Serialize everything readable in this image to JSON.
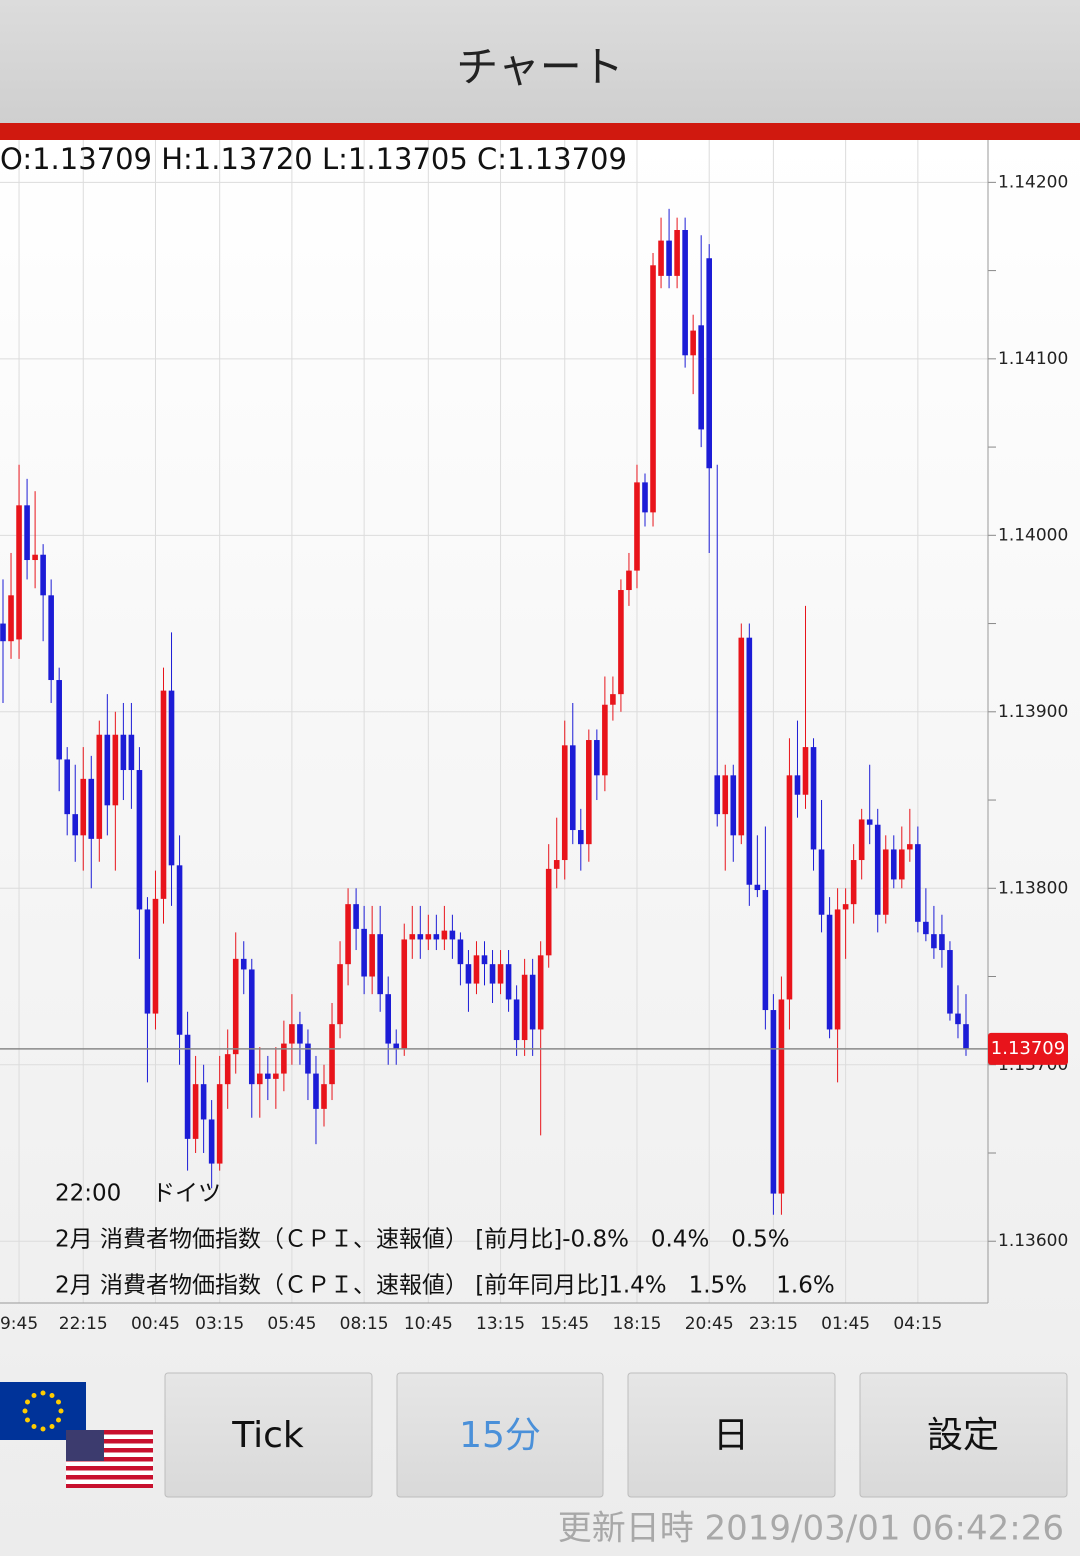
{
  "header": {
    "title": "チャート"
  },
  "chart_data": {
    "type": "candlestick",
    "ohlc_label": "O:1.13709 H:1.13720 L:1.13705 C:1.13709",
    "up_color": "#e8141b",
    "down_color": "#1c1cd6",
    "grid": true,
    "ylim": [
      1.13565,
      1.14224
    ],
    "yticks": [
      {
        "value": 1.142,
        "label": "1.14200"
      },
      {
        "value": 1.141,
        "label": "1.14100"
      },
      {
        "value": 1.14,
        "label": "1.14000"
      },
      {
        "value": 1.139,
        "label": "1.13900"
      },
      {
        "value": 1.138,
        "label": "1.13800"
      },
      {
        "value": 1.137,
        "label": "1.13700"
      },
      {
        "value": 1.136,
        "label": "1.13600"
      }
    ],
    "minor_yticks": [
      1.1415,
      1.1405,
      1.1395,
      1.1385,
      1.1375,
      1.1365
    ],
    "last_price": {
      "value": 1.13709,
      "label": "1.13709"
    },
    "categories": [
      null,
      null,
      "9:45",
      null,
      null,
      null,
      null,
      null,
      null,
      null,
      "22:15",
      null,
      null,
      null,
      null,
      null,
      null,
      null,
      null,
      "00:45",
      null,
      null,
      null,
      null,
      null,
      null,
      null,
      "03:15",
      null,
      null,
      null,
      null,
      null,
      null,
      null,
      null,
      "05:45",
      null,
      null,
      null,
      null,
      null,
      null,
      null,
      null,
      "08:15",
      null,
      null,
      null,
      null,
      null,
      null,
      null,
      "10:45",
      null,
      null,
      null,
      null,
      null,
      null,
      null,
      null,
      "13:15",
      null,
      null,
      null,
      null,
      null,
      null,
      null,
      "15:45",
      null,
      null,
      null,
      null,
      null,
      null,
      null,
      null,
      "18:15",
      null,
      null,
      null,
      null,
      null,
      null,
      null,
      null,
      "20:45",
      null,
      null,
      null,
      null,
      null,
      null,
      null,
      "23:15",
      null,
      null,
      null,
      null,
      null,
      null,
      null,
      null,
      "01:45",
      null,
      null,
      null,
      null,
      null,
      null,
      null,
      null,
      "04:15",
      null,
      null,
      null,
      null,
      null,
      null
    ],
    "ohlc": [
      [
        1.1395,
        1.13975,
        1.13905,
        1.1394
      ],
      [
        1.1394,
        1.1399,
        1.1393,
        1.13966
      ],
      [
        1.13941,
        1.1404,
        1.1393,
        1.14017
      ],
      [
        1.14017,
        1.14032,
        1.13975,
        1.13986
      ],
      [
        1.13986,
        1.14025,
        1.1397,
        1.13989
      ],
      [
        1.13989,
        1.13995,
        1.1394,
        1.13966
      ],
      [
        1.13966,
        1.13975,
        1.13905,
        1.13918
      ],
      [
        1.13918,
        1.13925,
        1.13855,
        1.13873
      ],
      [
        1.13873,
        1.1388,
        1.1383,
        1.13842
      ],
      [
        1.13842,
        1.1387,
        1.13815,
        1.1383
      ],
      [
        1.1383,
        1.1388,
        1.1381,
        1.13862
      ],
      [
        1.13862,
        1.13875,
        1.138,
        1.13828
      ],
      [
        1.13828,
        1.13895,
        1.13815,
        1.13887
      ],
      [
        1.13887,
        1.1391,
        1.1383,
        1.13847
      ],
      [
        1.13847,
        1.139,
        1.1381,
        1.13887
      ],
      [
        1.13887,
        1.13905,
        1.1385,
        1.13867
      ],
      [
        1.13887,
        1.13905,
        1.13845,
        1.13867
      ],
      [
        1.13867,
        1.1388,
        1.1376,
        1.13788
      ],
      [
        1.13788,
        1.13795,
        1.1369,
        1.13729
      ],
      [
        1.13729,
        1.1381,
        1.1372,
        1.13794
      ],
      [
        1.13794,
        1.13925,
        1.1378,
        1.13912
      ],
      [
        1.13912,
        1.13945,
        1.1379,
        1.13813
      ],
      [
        1.13813,
        1.1383,
        1.137,
        1.13717
      ],
      [
        1.13717,
        1.1373,
        1.1364,
        1.13658
      ],
      [
        1.13658,
        1.13705,
        1.1365,
        1.13689
      ],
      [
        1.13689,
        1.137,
        1.1365,
        1.13669
      ],
      [
        1.13669,
        1.1368,
        1.1363,
        1.13644
      ],
      [
        1.13644,
        1.13705,
        1.1364,
        1.13689
      ],
      [
        1.13689,
        1.1372,
        1.13675,
        1.13706
      ],
      [
        1.13706,
        1.13775,
        1.13695,
        1.1376
      ],
      [
        1.1376,
        1.1377,
        1.1374,
        1.13754
      ],
      [
        1.13754,
        1.1376,
        1.1367,
        1.13689
      ],
      [
        1.13689,
        1.1371,
        1.1367,
        1.13695
      ],
      [
        1.13695,
        1.13705,
        1.1368,
        1.13692
      ],
      [
        1.13692,
        1.1371,
        1.13675,
        1.13695
      ],
      [
        1.13695,
        1.13725,
        1.13685,
        1.13712
      ],
      [
        1.13712,
        1.1374,
        1.137,
        1.13723
      ],
      [
        1.13723,
        1.1373,
        1.137,
        1.13712
      ],
      [
        1.13712,
        1.1372,
        1.1368,
        1.13695
      ],
      [
        1.13695,
        1.13705,
        1.13655,
        1.13675
      ],
      [
        1.13675,
        1.137,
        1.13665,
        1.13689
      ],
      [
        1.13689,
        1.13735,
        1.1368,
        1.13723
      ],
      [
        1.13723,
        1.1377,
        1.13715,
        1.13757
      ],
      [
        1.13757,
        1.138,
        1.13745,
        1.13791
      ],
      [
        1.13791,
        1.138,
        1.13765,
        1.13777
      ],
      [
        1.13777,
        1.1379,
        1.1374,
        1.1375
      ],
      [
        1.1375,
        1.1379,
        1.1374,
        1.13774
      ],
      [
        1.13774,
        1.1379,
        1.1373,
        1.1374
      ],
      [
        1.1374,
        1.1375,
        1.137,
        1.13712
      ],
      [
        1.13712,
        1.1372,
        1.137,
        1.13709
      ],
      [
        1.13709,
        1.1378,
        1.13705,
        1.13771
      ],
      [
        1.13771,
        1.1379,
        1.1376,
        1.13774
      ],
      [
        1.13774,
        1.1379,
        1.1376,
        1.13771
      ],
      [
        1.13771,
        1.13785,
        1.13765,
        1.13774
      ],
      [
        1.13774,
        1.13785,
        1.13765,
        1.13771
      ],
      [
        1.13771,
        1.1379,
        1.13765,
        1.13776
      ],
      [
        1.13776,
        1.13785,
        1.1376,
        1.13771
      ],
      [
        1.13771,
        1.13775,
        1.13745,
        1.13757
      ],
      [
        1.13757,
        1.13765,
        1.1373,
        1.13746
      ],
      [
        1.13746,
        1.1377,
        1.1374,
        1.13762
      ],
      [
        1.13762,
        1.1377,
        1.13745,
        1.13757
      ],
      [
        1.13757,
        1.13765,
        1.13735,
        1.13746
      ],
      [
        1.13746,
        1.13765,
        1.1374,
        1.13757
      ],
      [
        1.13757,
        1.13765,
        1.1373,
        1.13737
      ],
      [
        1.13737,
        1.13745,
        1.13705,
        1.13714
      ],
      [
        1.13714,
        1.1376,
        1.13705,
        1.13751
      ],
      [
        1.13751,
        1.1376,
        1.13705,
        1.1372
      ],
      [
        1.1372,
        1.1377,
        1.1366,
        1.13762
      ],
      [
        1.13762,
        1.13825,
        1.13755,
        1.13811
      ],
      [
        1.13811,
        1.1384,
        1.138,
        1.13816
      ],
      [
        1.13816,
        1.13895,
        1.13805,
        1.13881
      ],
      [
        1.13881,
        1.13905,
        1.13825,
        1.13833
      ],
      [
        1.13833,
        1.13845,
        1.1381,
        1.13825
      ],
      [
        1.13825,
        1.1389,
        1.13815,
        1.13884
      ],
      [
        1.13884,
        1.1389,
        1.1385,
        1.13864
      ],
      [
        1.13864,
        1.1392,
        1.13855,
        1.13904
      ],
      [
        1.13904,
        1.1392,
        1.13895,
        1.1391
      ],
      [
        1.1391,
        1.13975,
        1.139,
        1.13969
      ],
      [
        1.13969,
        1.1399,
        1.1396,
        1.1398
      ],
      [
        1.1398,
        1.1404,
        1.1397,
        1.1403
      ],
      [
        1.1403,
        1.14035,
        1.14005,
        1.14013
      ],
      [
        1.14013,
        1.1416,
        1.14005,
        1.14153
      ],
      [
        1.14147,
        1.1418,
        1.1414,
        1.14167
      ],
      [
        1.14167,
        1.14185,
        1.1414,
        1.14147
      ],
      [
        1.14147,
        1.1418,
        1.1414,
        1.14173
      ],
      [
        1.14173,
        1.1418,
        1.14095,
        1.14102
      ],
      [
        1.14102,
        1.14125,
        1.1408,
        1.14116
      ],
      [
        1.14119,
        1.1417,
        1.1405,
        1.1406
      ],
      [
        1.14157,
        1.14165,
        1.1399,
        1.14038
      ],
      [
        1.13864,
        1.1404,
        1.13835,
        1.13842
      ],
      [
        1.13842,
        1.1387,
        1.1381,
        1.13864
      ],
      [
        1.13864,
        1.1387,
        1.13815,
        1.1383
      ],
      [
        1.1383,
        1.1395,
        1.13825,
        1.13942
      ],
      [
        1.13942,
        1.1395,
        1.1379,
        1.13802
      ],
      [
        1.13802,
        1.1383,
        1.13795,
        1.13799
      ],
      [
        1.13799,
        1.13835,
        1.1372,
        1.13731
      ],
      [
        1.13731,
        1.1374,
        1.13615,
        1.13627
      ],
      [
        1.13627,
        1.1375,
        1.13615,
        1.13737
      ],
      [
        1.13737,
        1.13885,
        1.1372,
        1.13864
      ],
      [
        1.13864,
        1.13895,
        1.1384,
        1.13853
      ],
      [
        1.13853,
        1.1396,
        1.13845,
        1.1388
      ],
      [
        1.1388,
        1.13885,
        1.1381,
        1.13822
      ],
      [
        1.13822,
        1.1385,
        1.13775,
        1.13785
      ],
      [
        1.13785,
        1.13795,
        1.13715,
        1.1372
      ],
      [
        1.1372,
        1.138,
        1.1369,
        1.13788
      ],
      [
        1.13788,
        1.138,
        1.1376,
        1.13791
      ],
      [
        1.13791,
        1.13825,
        1.1378,
        1.13816
      ],
      [
        1.13816,
        1.13845,
        1.13805,
        1.13839
      ],
      [
        1.13839,
        1.1387,
        1.13825,
        1.13836
      ],
      [
        1.13836,
        1.13845,
        1.13775,
        1.13785
      ],
      [
        1.13785,
        1.1383,
        1.1378,
        1.13822
      ],
      [
        1.13822,
        1.1383,
        1.138,
        1.13805
      ],
      [
        1.13805,
        1.13835,
        1.138,
        1.13822
      ],
      [
        1.13822,
        1.13845,
        1.13815,
        1.13825
      ],
      [
        1.13825,
        1.13835,
        1.13775,
        1.13781
      ],
      [
        1.13781,
        1.138,
        1.1377,
        1.13774
      ],
      [
        1.13774,
        1.1379,
        1.1376,
        1.13766
      ],
      [
        1.13774,
        1.13785,
        1.13755,
        1.13765
      ],
      [
        1.13765,
        1.1377,
        1.13725,
        1.13729
      ],
      [
        1.13729,
        1.13745,
        1.13715,
        1.13723
      ],
      [
        1.13723,
        1.1374,
        1.13705,
        1.13709
      ]
    ],
    "events": {
      "time": "22:00",
      "country": "ドイツ",
      "lines": [
        "2月 消費者物価指数（ＣＰＩ、速報値） [前月比]-0.8%   0.4%   0.5%",
        "2月 消費者物価指数（ＣＰＩ、速報値） [前年同月比]1.4%   1.5%    1.6%"
      ]
    }
  },
  "buttons": [
    "Tick",
    "15分",
    "日",
    "設定"
  ],
  "footer": {
    "updated": "更新日時 2019/03/01 06:42:26"
  }
}
